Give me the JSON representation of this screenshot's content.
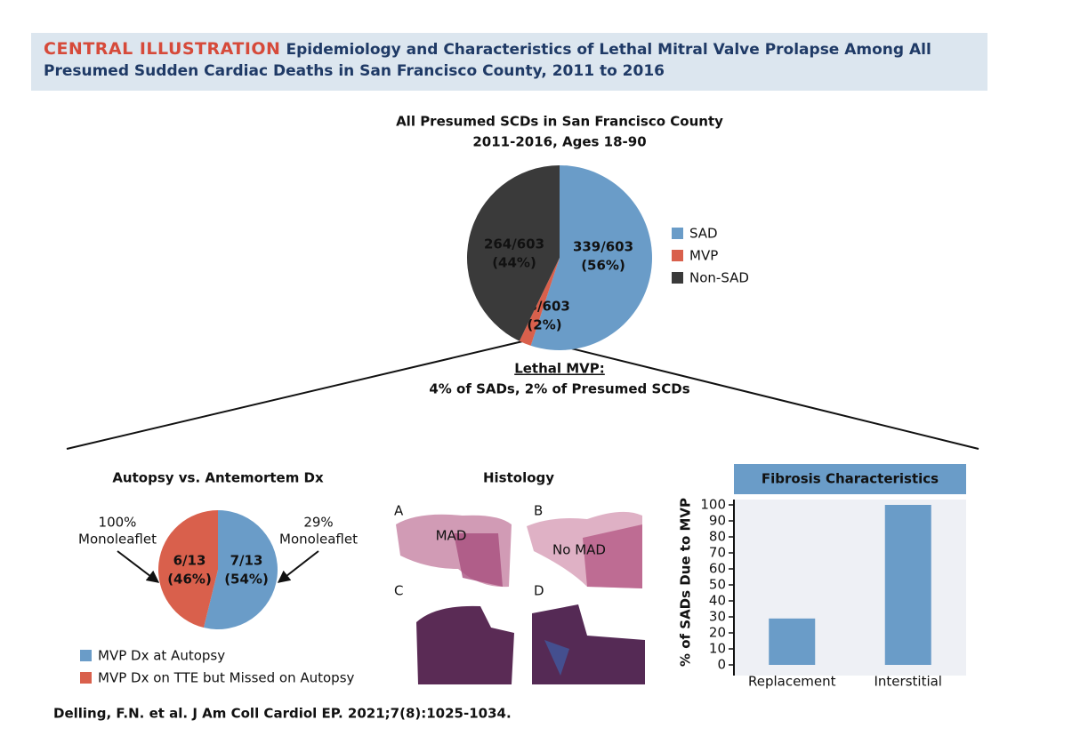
{
  "header": {
    "label": "CENTRAL ILLUSTRATION",
    "title": "Epidemiology and Characteristics of Lethal Mitral Valve Prolapse Among All Presumed Sudden Cardiac Deaths in San Francisco County, 2011 to 2016"
  },
  "chart_data": [
    {
      "type": "pie",
      "title": [
        "All Presumed SCDs in San Francisco County",
        "2011-2016, Ages 18-90"
      ],
      "categories": [
        "SAD",
        "MVP",
        "Non-SAD"
      ],
      "values": [
        339,
        13,
        264
      ],
      "value_labels": [
        [
          "339/603",
          "(56%)"
        ],
        [
          "13/603",
          "(2%)"
        ],
        [
          "264/603",
          "(44%)"
        ]
      ],
      "colors": [
        "#6a9cc8",
        "#d9604c",
        "#3a3a3a"
      ],
      "legend": "right",
      "annotation": {
        "heading": "Lethal MVP:",
        "text": "4% of SADs, 2% of Presumed SCDs"
      }
    },
    {
      "type": "pie",
      "title": "Autopsy vs. Antemortem Dx",
      "categories": [
        "MVP Dx at Autopsy",
        "MVP Dx on TTE but Missed on Autopsy"
      ],
      "values": [
        7,
        6
      ],
      "value_labels": [
        [
          "7/13",
          "(54%)"
        ],
        [
          "6/13",
          "(46%)"
        ]
      ],
      "colors": [
        "#6a9cc8",
        "#d9604c"
      ],
      "legend": "bottom",
      "annotations": [
        [
          "29%",
          "Monoleaflet"
        ],
        [
          "100%",
          "Monoleaflet"
        ]
      ]
    },
    {
      "type": "bar",
      "title": "Fibrosis Characteristics",
      "ylabel": "% of SADs Due to MVP",
      "categories": [
        "Replacement",
        "Interstitial"
      ],
      "values": [
        29,
        100
      ],
      "color": "#6a9cc8",
      "ylim": [
        0,
        100
      ],
      "yticks": [
        0,
        10,
        20,
        30,
        40,
        50,
        60,
        70,
        80,
        90,
        100
      ]
    }
  ],
  "histology": {
    "title": "Histology",
    "panels": [
      {
        "label": "A",
        "note": "MAD"
      },
      {
        "label": "B",
        "note": "No MAD"
      },
      {
        "label": "C"
      },
      {
        "label": "D"
      }
    ]
  },
  "citation": "Delling, F.N. et al. J Am Coll Cardiol EP. 2021;7(8):1025-1034."
}
